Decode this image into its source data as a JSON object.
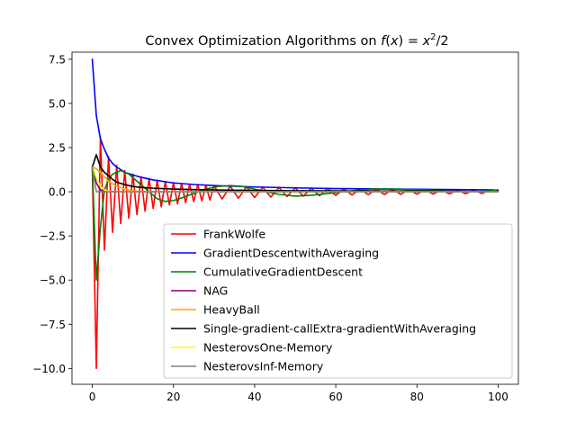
{
  "chart_data": {
    "type": "line",
    "title": "Convex Optimization Algorithms on f(x) = x²/2",
    "title_parts": {
      "prefix": "Convex Optimization Algorithms on ",
      "fx": "f",
      "open": "(",
      "x": "x",
      "close": ") = ",
      "x2": "x",
      "exp": "2",
      "tail": "/2"
    },
    "xlabel": "",
    "ylabel": "",
    "xlim": [
      -5,
      105
    ],
    "ylim": [
      -10.9,
      7.9
    ],
    "xticks": [
      0,
      20,
      40,
      60,
      80,
      100
    ],
    "xtick_labels": [
      "0",
      "20",
      "40",
      "60",
      "80",
      "100"
    ],
    "yticks": [
      7.5,
      5.0,
      2.5,
      0.0,
      -2.5,
      -5.0,
      -7.5,
      -10.0
    ],
    "ytick_labels": [
      "7.5",
      "5.0",
      "2.5",
      "0.0",
      "−2.5",
      "−5.0",
      "−7.5",
      "−10.0"
    ],
    "grid": false,
    "legend_position": "lower-right",
    "series": [
      {
        "name": "FrankWolfe",
        "color": "#ff0000",
        "x": [
          0,
          1,
          2,
          3,
          4,
          5,
          6,
          7,
          8,
          9,
          10,
          11,
          12,
          13,
          14,
          15,
          16,
          17,
          18,
          19,
          20,
          21,
          22,
          23,
          24,
          25,
          26,
          27,
          28,
          29,
          30,
          32,
          34,
          36,
          38,
          40,
          42,
          44,
          46,
          48,
          50,
          52,
          54,
          56,
          58,
          60,
          62,
          64,
          66,
          68,
          70,
          72,
          74,
          76,
          78,
          80,
          82,
          84,
          86,
          88,
          90,
          92,
          94,
          96,
          98,
          100
        ],
        "y": [
          1.4,
          -10.0,
          3.1,
          -3.3,
          2.0,
          -2.3,
          1.5,
          -1.8,
          1.2,
          -1.5,
          1.0,
          -1.3,
          0.85,
          -1.1,
          0.75,
          -0.95,
          0.65,
          -0.85,
          0.58,
          -0.75,
          0.52,
          -0.68,
          0.47,
          -0.62,
          0.43,
          -0.56,
          0.4,
          -0.51,
          0.37,
          -0.47,
          0.34,
          -0.41,
          0.31,
          -0.37,
          0.28,
          -0.33,
          0.26,
          -0.3,
          0.24,
          -0.27,
          0.22,
          -0.25,
          0.2,
          -0.23,
          0.19,
          -0.21,
          0.17,
          -0.19,
          0.16,
          -0.17,
          0.15,
          -0.16,
          0.14,
          -0.15,
          0.13,
          -0.14,
          0.12,
          -0.13,
          0.11,
          -0.12,
          0.1,
          -0.11,
          0.09,
          -0.1,
          0.09,
          0.08
        ]
      },
      {
        "name": "GradientDescentwithAveraging",
        "color": "#0000ff",
        "x": [
          0,
          1,
          2,
          3,
          4,
          5,
          6,
          8,
          10,
          12,
          15,
          20,
          25,
          30,
          40,
          50,
          60,
          70,
          80,
          90,
          99
        ],
        "y": [
          7.5,
          4.3,
          3.0,
          2.4,
          1.9,
          1.6,
          1.4,
          1.1,
          0.95,
          0.82,
          0.67,
          0.5,
          0.41,
          0.35,
          0.27,
          0.22,
          0.18,
          0.16,
          0.14,
          0.12,
          0.1
        ]
      },
      {
        "name": "CumulativeGradientDescent",
        "color": "#008000",
        "x": [
          0,
          1,
          2,
          3,
          4,
          5,
          6,
          7,
          8,
          9,
          10,
          12,
          14,
          16,
          18,
          20,
          22,
          25,
          28,
          31,
          34,
          37,
          40,
          43,
          46,
          50,
          54,
          58,
          62,
          66,
          70,
          74,
          78,
          82,
          86,
          90,
          94,
          98,
          100
        ],
        "y": [
          1.4,
          -5.0,
          -2.0,
          0.1,
          0.7,
          1.0,
          1.1,
          1.2,
          1.1,
          1.0,
          0.8,
          0.4,
          0.0,
          -0.4,
          -0.55,
          -0.5,
          -0.35,
          -0.1,
          0.15,
          0.3,
          0.35,
          0.3,
          0.15,
          0.0,
          -0.15,
          -0.25,
          -0.2,
          -0.1,
          0.0,
          0.1,
          0.15,
          0.15,
          0.12,
          0.1,
          0.05,
          0.0,
          0.0,
          0.05,
          0.1
        ]
      },
      {
        "name": "NAG",
        "color": "#800080",
        "x": [
          0,
          1,
          2,
          3,
          4,
          5,
          6,
          8,
          10,
          15,
          20,
          30,
          50,
          80,
          100
        ],
        "y": [
          1.4,
          0.5,
          0.1,
          0.02,
          0.0,
          0.0,
          0.0,
          0.0,
          0.0,
          0.0,
          0.0,
          0.0,
          0.0,
          0.0,
          0.0
        ]
      },
      {
        "name": "HeavyBall",
        "color": "#ffa500",
        "x": [
          0,
          1,
          2,
          3,
          4,
          5,
          6,
          7,
          8,
          9,
          10,
          11,
          12,
          13,
          14,
          16,
          18,
          20,
          25,
          30,
          40,
          60,
          100
        ],
        "y": [
          1.4,
          1.3,
          1.1,
          0.85,
          0.6,
          0.45,
          0.3,
          0.25,
          0.15,
          0.1,
          0.05,
          0.03,
          0.0,
          0.02,
          0.0,
          0.0,
          0.0,
          0.0,
          0.0,
          0.0,
          0.0,
          0.0,
          0.0
        ]
      },
      {
        "name": "Single-gradient-callExtra-gradientWithAveraging",
        "color": "#000000",
        "x": [
          0,
          1,
          2,
          3,
          4,
          5,
          6,
          8,
          10,
          12,
          15,
          20,
          25,
          30,
          40,
          50,
          60,
          70,
          80,
          90,
          99,
          100
        ],
        "y": [
          1.4,
          2.1,
          1.4,
          1.1,
          0.9,
          0.7,
          0.55,
          0.4,
          0.3,
          0.25,
          0.2,
          0.15,
          0.12,
          0.1,
          0.08,
          0.06,
          0.05,
          0.04,
          0.04,
          0.03,
          0.0,
          0.05
        ]
      },
      {
        "name": "NesterovsOne-Memory",
        "color": "#ffff00",
        "x": [
          0,
          1,
          2,
          3,
          4,
          5,
          6,
          8,
          10,
          15,
          20,
          30,
          50,
          80,
          100
        ],
        "y": [
          1.4,
          0.8,
          0.3,
          0.1,
          0.02,
          0.0,
          0.0,
          0.0,
          0.0,
          0.0,
          0.0,
          0.0,
          0.0,
          0.0,
          0.0
        ]
      },
      {
        "name": "NesterovsInf-Memory",
        "color": "#808080",
        "x": [
          0,
          1,
          2,
          3,
          5,
          10,
          20,
          40,
          60,
          80,
          100
        ],
        "y": [
          1.4,
          0.0,
          0.0,
          0.0,
          0.0,
          0.0,
          0.0,
          0.0,
          0.0,
          0.0,
          0.0
        ]
      }
    ]
  }
}
